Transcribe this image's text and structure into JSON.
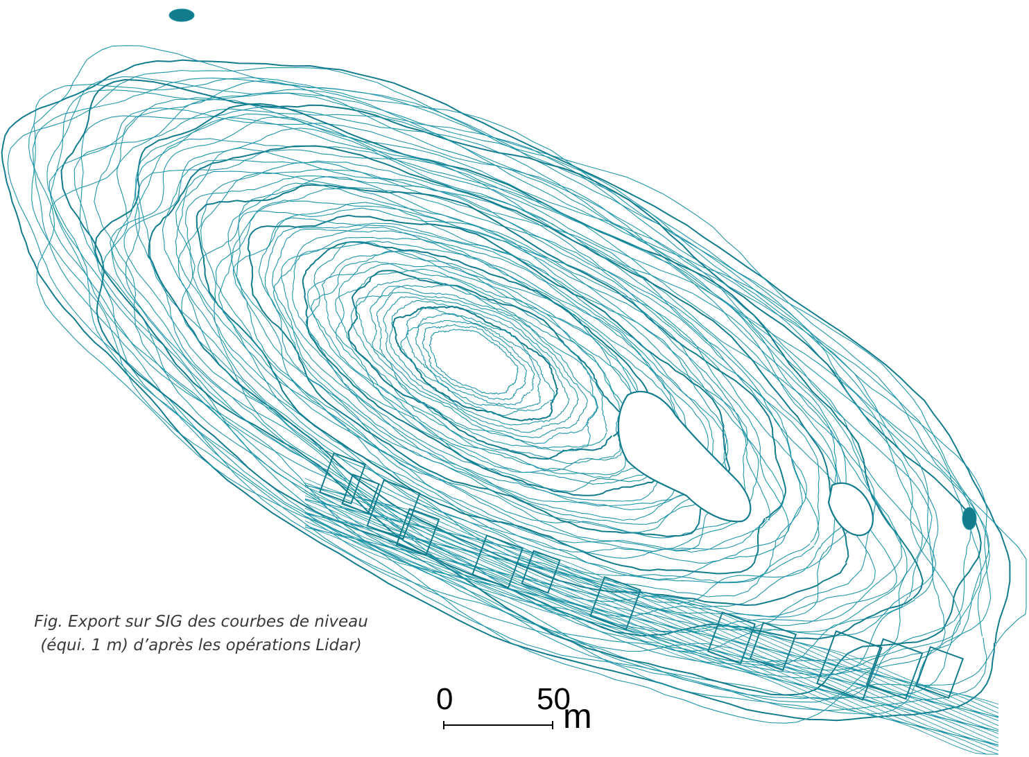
{
  "caption": {
    "line1": "Fig. Export sur SIG des courbes de niveau",
    "line2": "(équi. 1 m) d’après les opérations Lidar)"
  },
  "scale_bar": {
    "start_label": "0",
    "end_label": "50",
    "unit": "m"
  },
  "colors": {
    "contour": "#1f95a8",
    "contour_dark": "#137c8c",
    "background": "#ffffff",
    "scale": "#000000",
    "caption": "#3a3a3a"
  }
}
